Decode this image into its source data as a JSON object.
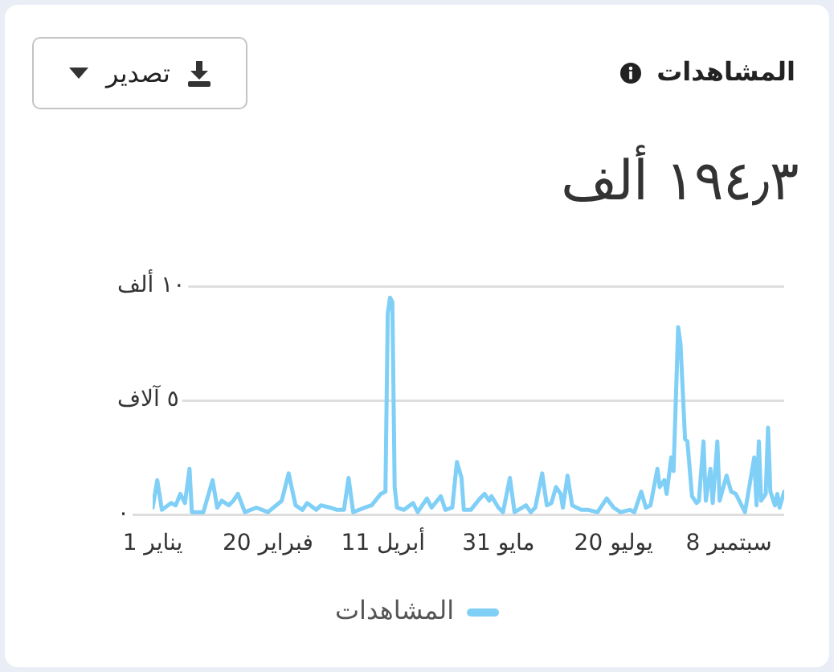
{
  "chart_data": {
    "type": "line",
    "title": "المشاهدات",
    "subtitle": "١٩٤٫٣ ألف",
    "annotations": [
      "تصدير"
    ],
    "x": [
      "--01-01",
      "--01-03",
      "--01-05",
      "--01-09",
      "--01-11",
      "--01-13",
      "--01-15",
      "--01-17",
      "--01-18",
      "--01-23",
      "--01-27",
      "--01-29",
      "--01-31",
      "--02-03",
      "--02-05",
      "--02-07",
      "--02-10",
      "--02-15",
      "--02-20",
      "--02-26",
      "--03-01",
      "--03-04",
      "--03-07",
      "--03-09",
      "--03-13",
      "--03-15",
      "--03-19",
      "--03-22",
      "--03-25",
      "--03-27",
      "--03-29",
      "--04-03",
      "--04-06",
      "--04-10",
      "--04-12",
      "--04-13",
      "--04-14",
      "--04-15",
      "--04-16",
      "--04-17",
      "--04-20",
      "--04-24",
      "--04-26",
      "--04-30",
      "--05-02",
      "--05-06",
      "--05-08",
      "--05-11",
      "--05-13",
      "--05-15",
      "--05-16",
      "--05-19",
      "--05-23",
      "--05-25",
      "--05-27",
      "--05-28",
      "--05-31",
      "--06-02",
      "--06-05",
      "--06-07",
      "--06-12",
      "--06-14",
      "--06-16",
      "--06-19",
      "--06-21",
      "--06-23",
      "--06-25",
      "--06-27",
      "--06-28",
      "--06-30",
      "--07-02",
      "--07-06",
      "--07-09",
      "--07-13",
      "--07-17",
      "--07-20",
      "--07-23",
      "--07-27",
      "--07-29",
      "--08-01",
      "--08-03",
      "--08-05",
      "--08-08",
      "--08-09",
      "--08-11",
      "--08-12",
      "--08-14",
      "--08-15",
      "--08-17",
      "--08-18",
      "--08-20",
      "--08-21",
      "--08-23",
      "--08-25",
      "--08-26",
      "--08-28",
      "--08-29",
      "--08-31",
      "--09-01",
      "--09-03",
      "--09-04",
      "--09-07",
      "--09-09",
      "--09-11",
      "--09-15",
      "--09-17",
      "--09-19",
      "--09-20",
      "--09-21",
      "--09-22",
      "--09-24",
      "--09-25",
      "--09-26",
      "--09-28",
      "--09-29",
      "--09-30",
      "--10-02"
    ],
    "series": [
      {
        "name": "المشاهدات",
        "color": "#80cff7",
        "values": [
          0.3,
          1.5,
          0.2,
          0.5,
          0.4,
          0.9,
          0.5,
          2,
          0.1,
          0.1,
          1.5,
          0.3,
          0.6,
          0.4,
          0.6,
          0.9,
          0.1,
          0.3,
          0.1,
          0.6,
          1.8,
          0.4,
          0.2,
          0.5,
          0.2,
          0.4,
          0.3,
          0.2,
          0.2,
          1.6,
          0.1,
          0.3,
          0.4,
          0.9,
          1,
          8.8,
          9.5,
          9.3,
          1.2,
          0.3,
          0.2,
          0.5,
          0.1,
          0.7,
          0.3,
          0.8,
          0.2,
          0.3,
          2.3,
          1.6,
          0.2,
          0.2,
          0.7,
          0.9,
          0.6,
          0.8,
          0.3,
          0.1,
          1.6,
          0.1,
          0.4,
          0.1,
          0.3,
          1.8,
          0.4,
          0.5,
          1.2,
          0.9,
          0.3,
          1.7,
          0.4,
          0.2,
          0.2,
          0.1,
          0.7,
          0.3,
          0.1,
          0.2,
          0.1,
          1,
          0.3,
          0.4,
          2,
          1.2,
          1.5,
          0.9,
          2.5,
          1.9,
          8.2,
          7.5,
          3.3,
          3.2,
          0.8,
          0.5,
          0.6,
          3.2,
          0.6,
          2,
          0.5,
          3.2,
          0.6,
          1.7,
          1,
          0.9,
          0.1,
          1.3,
          2.5,
          0.4,
          3.2,
          0.6,
          0.9,
          3.8,
          1,
          0.4,
          0.9,
          0.3,
          1
        ]
      }
    ],
    "xlim": [
      "--01-01",
      "--10-02"
    ],
    "xticks": [
      {
        "value": "--01-01",
        "label": "1 يناير"
      },
      {
        "value": "--02-20",
        "label": "20 فبراير"
      },
      {
        "value": "--04-11",
        "label": "11 أبريل"
      },
      {
        "value": "--05-31",
        "label": "31 مايو"
      },
      {
        "value": "--07-20",
        "label": "20 يوليو"
      },
      {
        "value": "--09-08",
        "label": "8 سبتمبر"
      }
    ],
    "ylim": [
      0,
      10
    ],
    "yticks": [
      {
        "value": 0,
        "label": "٠"
      },
      {
        "value": 5,
        "label": "٥ آلاف"
      },
      {
        "value": 10,
        "label": "١٠ ألف"
      }
    ],
    "grid": "y",
    "legend": "bottom",
    "marker": "none"
  }
}
